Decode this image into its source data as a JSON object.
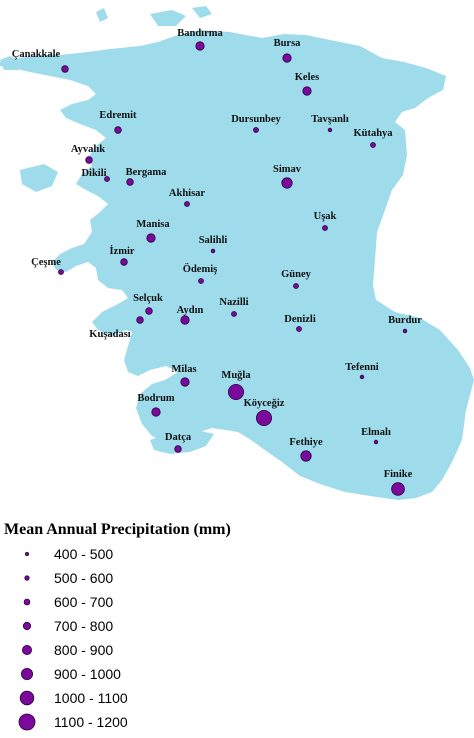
{
  "colors": {
    "land": "#9edcec",
    "symbol_fill": "#7b0a9c",
    "symbol_stroke": "#2a0040",
    "background": "#ffffff"
  },
  "legend": {
    "title": "Mean Annual Precipitation (mm)",
    "classes": [
      {
        "label": "400 - 500"
      },
      {
        "label": "500 - 600"
      },
      {
        "label": "600 - 700"
      },
      {
        "label": "700 - 800"
      },
      {
        "label": "800 - 900"
      },
      {
        "label": "900 - 1000"
      },
      {
        "label": "1000 - 1100"
      },
      {
        "label": "1100 - 1200"
      }
    ]
  },
  "stations": [
    {
      "name": "Çanakkale",
      "class": 3
    },
    {
      "name": "Bandırma",
      "class": 4
    },
    {
      "name": "Bursa",
      "class": 4
    },
    {
      "name": "Keles",
      "class": 4
    },
    {
      "name": "Edremit",
      "class": 3
    },
    {
      "name": "Dursunbey",
      "class": 2
    },
    {
      "name": "Tavşanlı",
      "class": 1
    },
    {
      "name": "Kütahya",
      "class": 2
    },
    {
      "name": "Ayvalık",
      "class": 3
    },
    {
      "name": "Dikili",
      "class": 2
    },
    {
      "name": "Bergama",
      "class": 3
    },
    {
      "name": "Simav",
      "class": 5
    },
    {
      "name": "Akhisar",
      "class": 2
    },
    {
      "name": "Manisa",
      "class": 4
    },
    {
      "name": "Uşak",
      "class": 2
    },
    {
      "name": "Salihli",
      "class": 1
    },
    {
      "name": "Çeşme",
      "class": 2
    },
    {
      "name": "İzmir",
      "class": 3
    },
    {
      "name": "Ödemiş",
      "class": 2
    },
    {
      "name": "Güney",
      "class": 2
    },
    {
      "name": "Nazilli",
      "class": 2
    },
    {
      "name": "Selçuk",
      "class": 3
    },
    {
      "name": "Aydın",
      "class": 4
    },
    {
      "name": "Denizli",
      "class": 2
    },
    {
      "name": "Burdur",
      "class": 1
    },
    {
      "name": "Kuşadası",
      "class": 3
    },
    {
      "name": "Milas",
      "class": 4
    },
    {
      "name": "Muğla",
      "class": 7
    },
    {
      "name": "Tefenni",
      "class": 1
    },
    {
      "name": "Köyceğiz",
      "class": 7
    },
    {
      "name": "Bodrum",
      "class": 4
    },
    {
      "name": "Elmalı",
      "class": 1
    },
    {
      "name": "Datça",
      "class": 3
    },
    {
      "name": "Fethiye",
      "class": 5
    },
    {
      "name": "Finike",
      "class": 6
    }
  ]
}
